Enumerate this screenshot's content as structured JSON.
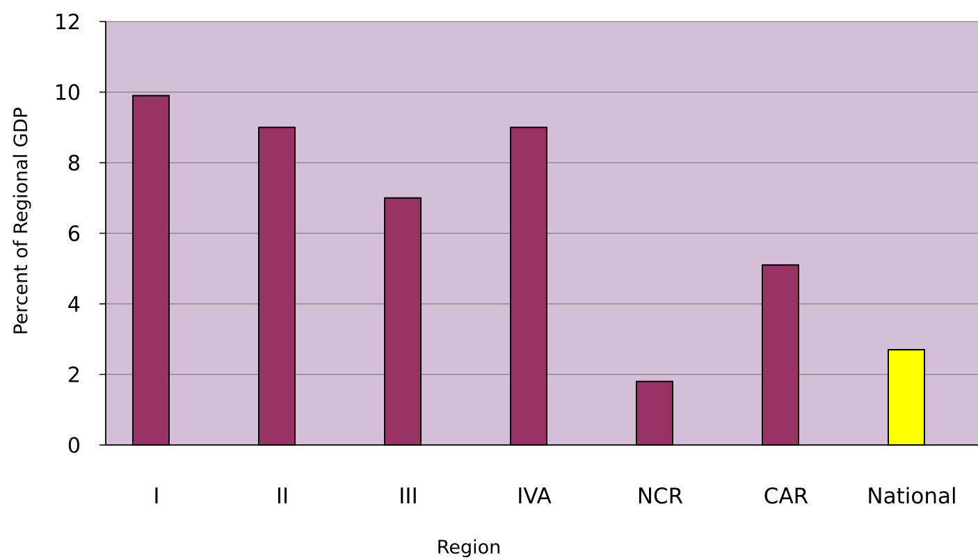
{
  "chart_data": {
    "type": "bar",
    "categories": [
      "I",
      "II",
      "III",
      "IVA",
      "NCR",
      "CAR",
      "National"
    ],
    "values": [
      9.9,
      9.0,
      7.0,
      9.0,
      1.8,
      5.1,
      2.7
    ],
    "bar_colors": [
      "#993366",
      "#993366",
      "#993366",
      "#993366",
      "#993366",
      "#993366",
      "#FFFF00"
    ],
    "title": "",
    "xlabel": "Region",
    "ylabel": "Percent of Regional GDP",
    "ylim": [
      0,
      12
    ],
    "yticks": [
      0,
      2,
      4,
      6,
      8,
      10,
      12
    ],
    "grid": true,
    "legend": "none",
    "plot_background": "#D3BFD8",
    "gridline_color": "#808080"
  }
}
